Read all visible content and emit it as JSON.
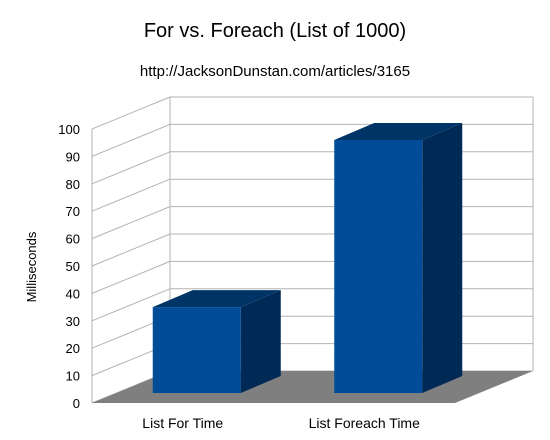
{
  "chart_data": {
    "type": "bar",
    "title": "For vs. Foreach (List of 1000)",
    "subtitle": "http://JacksonDunstan.com/articles/3165",
    "xlabel": "",
    "ylabel": "Milliseconds",
    "categories": [
      "List For Time",
      "List Foreach Time"
    ],
    "values": [
      35,
      96
    ],
    "ylim": [
      0,
      100
    ],
    "yticks": [
      0,
      10,
      20,
      30,
      40,
      50,
      60,
      70,
      80,
      90,
      100
    ],
    "grid": true,
    "legend": "none",
    "style": "3d",
    "colors": {
      "bar_front": "#004c99",
      "bar_side": "#002a55",
      "bar_top": "#003466",
      "floor": "#7f7f7f",
      "grid": "#b3b3b3"
    }
  }
}
